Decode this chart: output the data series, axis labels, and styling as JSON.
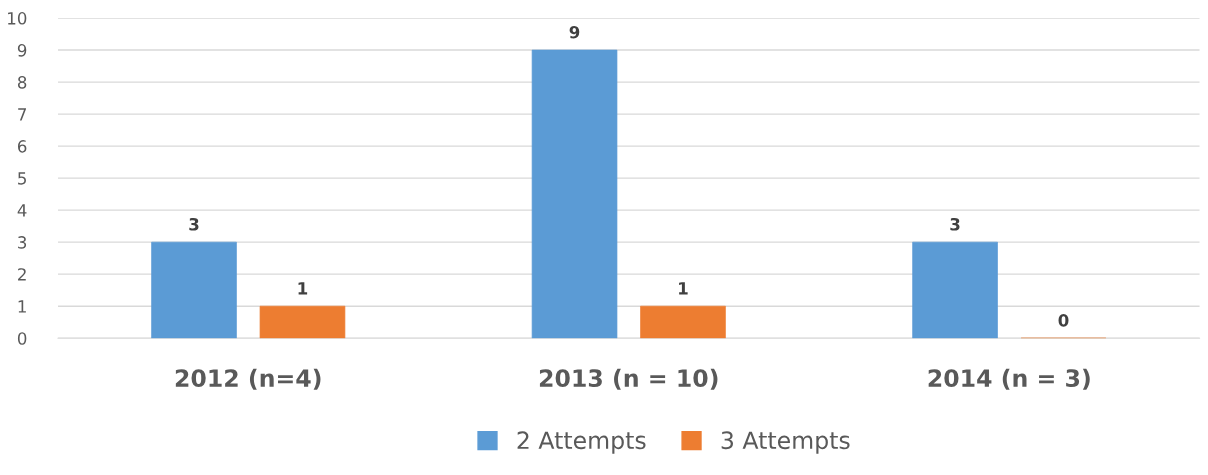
{
  "chart_data": {
    "type": "bar",
    "categories": [
      "2012 (n=4)",
      "2013 (n = 10)",
      "2014 (n = 3)"
    ],
    "series": [
      {
        "name": "2 Attempts",
        "color": "#5b9bd5",
        "values": [
          3,
          9,
          3
        ]
      },
      {
        "name": "3 Attempts",
        "color": "#ed7d31",
        "values": [
          1,
          1,
          0
        ]
      }
    ],
    "ylim": [
      0,
      10
    ],
    "yticks": [
      0,
      1,
      2,
      3,
      4,
      5,
      6,
      7,
      8,
      9,
      10
    ],
    "grid": "y",
    "legend": "bottom",
    "data_labels": true
  }
}
